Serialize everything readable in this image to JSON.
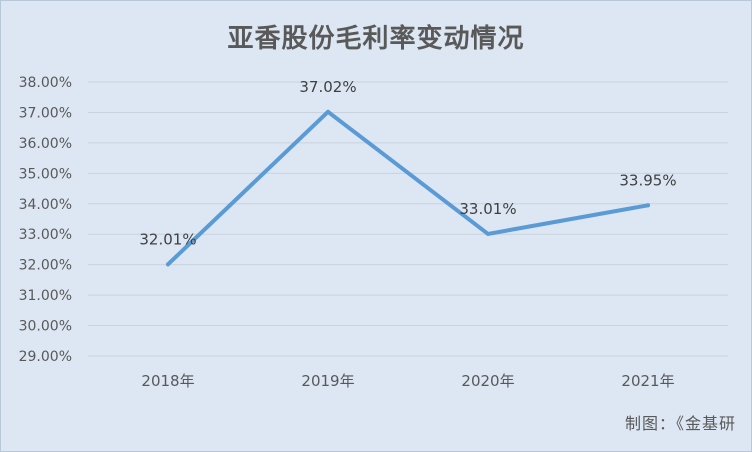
{
  "chart_data": {
    "type": "line",
    "title": "亚香股份毛利率变动情况",
    "categories": [
      "2018年",
      "2019年",
      "2020年",
      "2021年"
    ],
    "series": [
      {
        "values": [
          32.01,
          37.02,
          33.01,
          33.95
        ]
      }
    ],
    "data_labels": [
      "32.01%",
      "37.02%",
      "33.01%",
      "33.95%"
    ],
    "y_ticks": [
      "38.00%",
      "37.00%",
      "36.00%",
      "35.00%",
      "34.00%",
      "33.00%",
      "32.00%",
      "31.00%",
      "30.00%",
      "29.00%"
    ],
    "ylim": [
      29,
      38
    ],
    "grid": true,
    "legend": "none",
    "colors": {
      "line": "#5b9bd5",
      "grid": "#c9d3dd",
      "background": "#dce7f3",
      "text": "#595959"
    }
  },
  "footer": {
    "source": "制图：《金基研"
  }
}
